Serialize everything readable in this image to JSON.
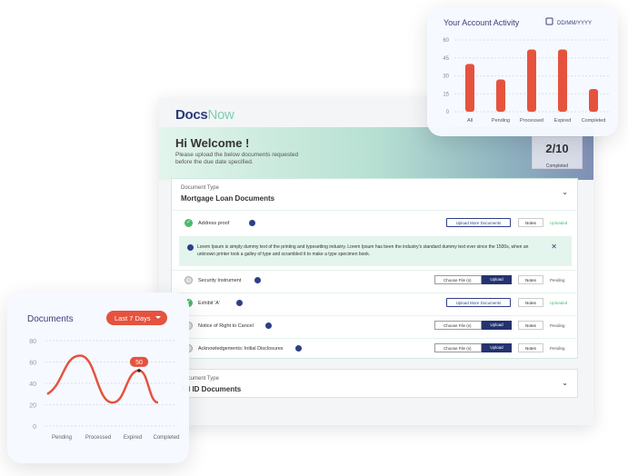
{
  "app": {
    "logo_docs": "Docs",
    "logo_now": "Now"
  },
  "banner": {
    "title": "Hi Welcome !",
    "subtitle": "Please upload the below documents requested before the due date specified.",
    "progress": "2/10",
    "progress_label": "Completed"
  },
  "card1": {
    "type_label": "Document Type",
    "type_name": "Mortgage Loan Documents"
  },
  "card2": {
    "type_label": "Document Type",
    "type_name": "All ID Documents"
  },
  "info_text": "Lorem Ipsum is simply dummy text of the printing and typesetting industry. Lorem Ipsum has been the industry's standard dummy text ever since the 1500s, when an unknown printer took a galley of type and scrambled it to make a type specimen book.",
  "labels": {
    "upload_more": "Upload More Documents",
    "choose": "Choose File (s)",
    "upload": "Upload",
    "notes": "Notes"
  },
  "rows": [
    {
      "name": "Address proof",
      "status": "Uploaded",
      "done": true
    },
    {
      "name": "Security Instrument",
      "status": "Pending",
      "done": false
    },
    {
      "name": "Exhibit 'A'",
      "status": "Uploaded",
      "done": true
    },
    {
      "name": "Notice of Right to Cancel",
      "status": "Pending",
      "done": false
    },
    {
      "name": "Acknowledgements: Initial Disclosures",
      "status": "Pending",
      "done": false
    }
  ],
  "colors": {
    "accent": "#e5533f",
    "navy": "#24336f",
    "green": "#4cb86b"
  },
  "chart_data": [
    {
      "type": "bar",
      "title": "Your Account Activity",
      "date_placeholder": "DD/MM/YYYY",
      "categories": [
        "All",
        "Pending",
        "Processed",
        "Expired",
        "Completed"
      ],
      "values": [
        40,
        27,
        52,
        52,
        19
      ],
      "yticks": [
        "0",
        "15",
        "30",
        "45",
        "60"
      ],
      "ylim": [
        0,
        60
      ],
      "grid": true
    },
    {
      "type": "line",
      "title": "Documents",
      "filter": "Last 7 Days",
      "categories": [
        "Pending",
        "Processed",
        "Expired",
        "Completed"
      ],
      "values": [
        30,
        66,
        22,
        52
      ],
      "tail_value": 22,
      "highlight": "50",
      "yticks": [
        "0",
        "20",
        "40",
        "60",
        "80"
      ],
      "ylim": [
        0,
        80
      ],
      "grid": true
    }
  ]
}
